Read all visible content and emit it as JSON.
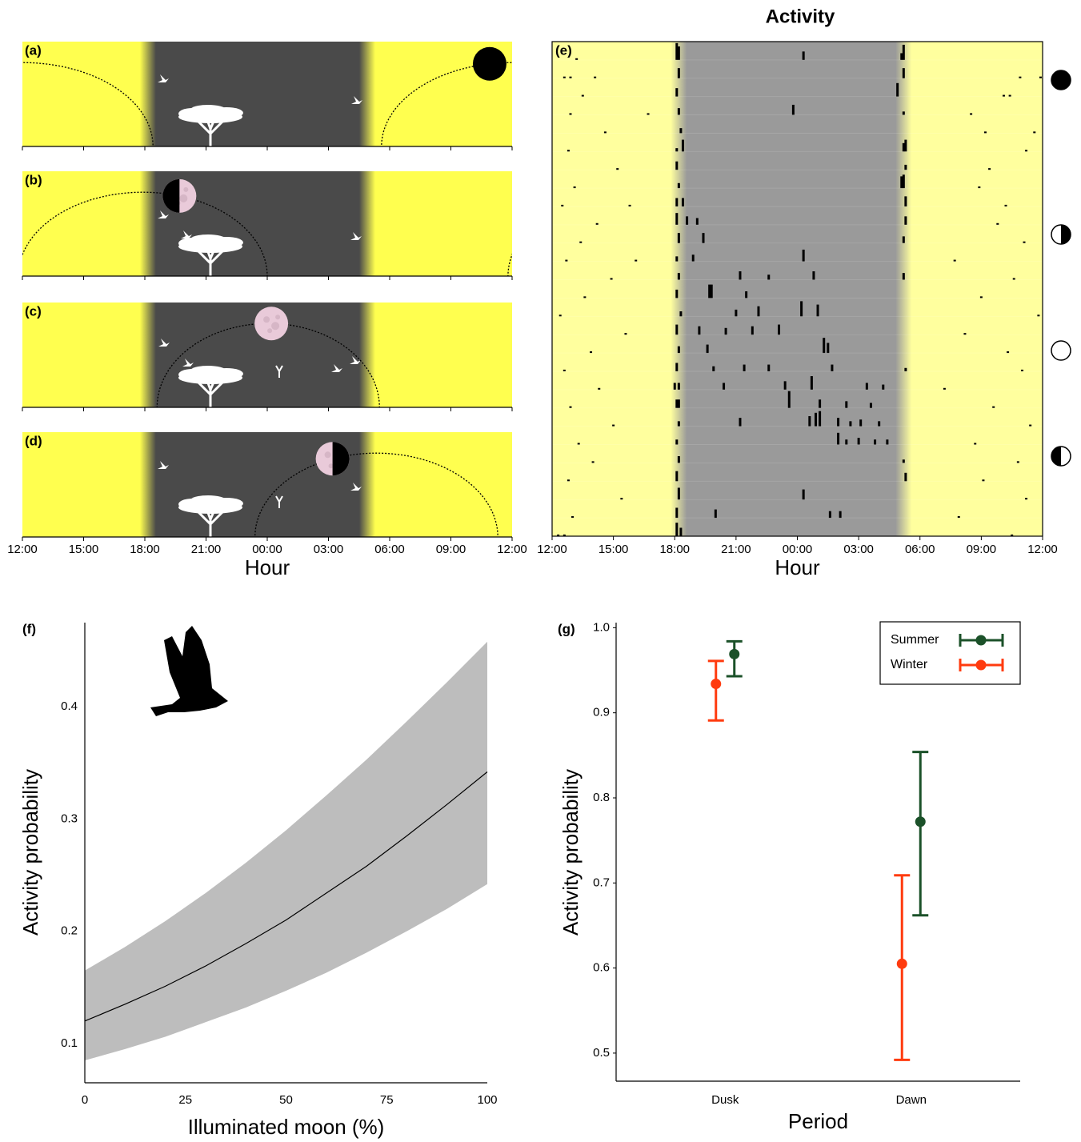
{
  "chart_data": [
    {
      "type": "moon-diagram",
      "panels": [
        {
          "label": "(a)",
          "moon_rise": 29.6,
          "moon_set": 18.4,
          "moon_at": 34.9
        },
        {
          "label": "(b)",
          "moon_rise": 35.8,
          "moon_set": 24.0,
          "moon_at": 19.7
        },
        {
          "label": "(c)",
          "moon_rise": 18.6,
          "moon_set": 29.5,
          "moon_at": 24.2
        },
        {
          "label": "(d)",
          "moon_rise": 23.4,
          "moon_set": 35.3,
          "moon_at": 27.2
        }
      ],
      "xlim": [
        12,
        36
      ],
      "xticks": [
        {
          "value": 12,
          "label": "12:00"
        },
        {
          "value": 15,
          "label": "15:00"
        },
        {
          "value": 18,
          "label": "18:00"
        },
        {
          "value": 21,
          "label": "21:00"
        },
        {
          "value": 24,
          "label": "00:00"
        },
        {
          "value": 27,
          "label": "03:00"
        },
        {
          "value": 30,
          "label": "06:00"
        },
        {
          "value": 33,
          "label": "09:00"
        },
        {
          "value": 36,
          "label": "12:00"
        }
      ],
      "xlabel": "Hour",
      "night": [
        18.15,
        28.9
      ],
      "day_color": "#ffff4f",
      "night_color": "#4a4a4a"
    },
    {
      "type": "actogram",
      "title": "Activity",
      "label": "(e)",
      "xlim": [
        12,
        36
      ],
      "xticks": [
        {
          "value": 12,
          "label": "12:00"
        },
        {
          "value": 15,
          "label": "15:00"
        },
        {
          "value": 18,
          "label": "18:00"
        },
        {
          "value": 21,
          "label": "21:00"
        },
        {
          "value": 24,
          "label": "00:00"
        },
        {
          "value": 27,
          "label": "03:00"
        },
        {
          "value": 30,
          "label": "06:00"
        },
        {
          "value": 33,
          "label": "09:00"
        },
        {
          "value": 36,
          "label": "12:00"
        }
      ],
      "xlabel": "Hour",
      "night": [
        18.2,
        29.2
      ],
      "day_color": "#ffff9e",
      "night_color": "#9a9a9a",
      "rows": [
        [
          [
            13.2,
            0.1
          ],
          [
            18.1,
            1
          ],
          [
            18.2,
            0.8
          ],
          [
            24.3,
            0.5
          ],
          [
            29.1,
            0.4
          ],
          [
            29.2,
            0.9
          ]
        ],
        [
          [
            12.6,
            0.1
          ],
          [
            12.9,
            0.1
          ],
          [
            14.1,
            0.1
          ],
          [
            18.2,
            0.6
          ],
          [
            29.2,
            0.6
          ],
          [
            34.9,
            0.1
          ],
          [
            35.9,
            0.1
          ]
        ],
        [
          [
            13.5,
            0.1
          ],
          [
            18.1,
            0.5
          ],
          [
            28.9,
            0.8
          ],
          [
            34.1,
            0.1
          ],
          [
            34.4,
            0.1
          ]
        ],
        [
          [
            12.9,
            0.1
          ],
          [
            16.7,
            0.1
          ],
          [
            18.2,
            0.4
          ],
          [
            23.8,
            0.6
          ],
          [
            29.2,
            0.2
          ],
          [
            32.5,
            0.1
          ]
        ],
        [
          [
            14.6,
            0.1
          ],
          [
            18.3,
            0.3
          ],
          [
            33.2,
            0.1
          ],
          [
            35.6,
            0.1
          ]
        ],
        [
          [
            12.8,
            0.1
          ],
          [
            18.1,
            0.2
          ],
          [
            18.4,
            0.7
          ],
          [
            29.2,
            0.5
          ],
          [
            29.3,
            0.7
          ],
          [
            35.2,
            0.1
          ]
        ],
        [
          [
            15.2,
            0.1
          ],
          [
            18.1,
            0.5
          ],
          [
            29.3,
            0.3
          ],
          [
            33.4,
            0.1
          ]
        ],
        [
          [
            13.1,
            0.1
          ],
          [
            18.2,
            0.3
          ],
          [
            29.1,
            0.7
          ],
          [
            29.2,
            0.8
          ],
          [
            32.9,
            0.1
          ]
        ],
        [
          [
            12.5,
            0.1
          ],
          [
            15.8,
            0.1
          ],
          [
            18.1,
            0.5
          ],
          [
            18.4,
            0.5
          ],
          [
            29.3,
            0.6
          ],
          [
            34.2,
            0.1
          ]
        ],
        [
          [
            14.2,
            0.1
          ],
          [
            18.1,
            0.7
          ],
          [
            18.6,
            0.5
          ],
          [
            19.1,
            0.4
          ],
          [
            29.3,
            0.5
          ],
          [
            33.8,
            0.1
          ]
        ],
        [
          [
            13.4,
            0.1
          ],
          [
            18.2,
            0.6
          ],
          [
            19.4,
            0.6
          ],
          [
            29.2,
            0.4
          ],
          [
            35.1,
            0.1
          ]
        ],
        [
          [
            12.7,
            0.1
          ],
          [
            16.1,
            0.1
          ],
          [
            18.1,
            0.3
          ],
          [
            18.9,
            0.4
          ],
          [
            24.3,
            0.7
          ],
          [
            31.7,
            0.1
          ]
        ],
        [
          [
            14.9,
            0.1
          ],
          [
            18.2,
            0.4
          ],
          [
            21.2,
            0.5
          ],
          [
            22.6,
            0.3
          ],
          [
            24.8,
            0.5
          ],
          [
            29.2,
            0.4
          ],
          [
            34.6,
            0.1
          ]
        ],
        [
          [
            13.6,
            0.1
          ],
          [
            18.1,
            0.5
          ],
          [
            19.7,
            0.8
          ],
          [
            19.8,
            0.8
          ],
          [
            21.5,
            0.4
          ],
          [
            33.0,
            0.1
          ]
        ],
        [
          [
            12.4,
            0.1
          ],
          [
            18.3,
            0.3
          ],
          [
            21.0,
            0.4
          ],
          [
            22.1,
            0.6
          ],
          [
            24.2,
            0.9
          ],
          [
            25.0,
            0.7
          ],
          [
            35.8,
            0.1
          ]
        ],
        [
          [
            15.6,
            0.1
          ],
          [
            18.1,
            0.6
          ],
          [
            19.2,
            0.5
          ],
          [
            20.5,
            0.4
          ],
          [
            21.8,
            0.5
          ],
          [
            23.1,
            0.6
          ],
          [
            32.2,
            0.1
          ]
        ],
        [
          [
            13.9,
            0.1
          ],
          [
            18.2,
            0.4
          ],
          [
            19.6,
            0.5
          ],
          [
            25.3,
            0.9
          ],
          [
            25.5,
            0.6
          ],
          [
            34.3,
            0.1
          ]
        ],
        [
          [
            12.6,
            0.1
          ],
          [
            18.1,
            0.5
          ],
          [
            19.9,
            0.3
          ],
          [
            21.4,
            0.4
          ],
          [
            22.6,
            0.4
          ],
          [
            25.7,
            0.4
          ],
          [
            29.3,
            0.2
          ],
          [
            35.0,
            0.1
          ]
        ],
        [
          [
            14.3,
            0.1
          ],
          [
            18.0,
            0.4
          ],
          [
            18.2,
            0.4
          ],
          [
            20.4,
            0.4
          ],
          [
            23.4,
            0.5
          ],
          [
            24.7,
            0.8
          ],
          [
            27.4,
            0.4
          ],
          [
            28.2,
            0.3
          ],
          [
            31.2,
            0.1
          ]
        ],
        [
          [
            12.9,
            0.1
          ],
          [
            18.1,
            0.5
          ],
          [
            18.2,
            0.5
          ],
          [
            23.6,
            1
          ],
          [
            25.1,
            0.5
          ],
          [
            26.4,
            0.4
          ],
          [
            27.6,
            0.3
          ],
          [
            33.6,
            0.1
          ]
        ],
        [
          [
            15.0,
            0.1
          ],
          [
            18.2,
            0.3
          ],
          [
            21.2,
            0.5
          ],
          [
            24.6,
            0.6
          ],
          [
            24.9,
            0.8
          ],
          [
            25.1,
            0.9
          ],
          [
            26.0,
            0.5
          ],
          [
            26.6,
            0.3
          ],
          [
            27.1,
            0.4
          ],
          [
            28.0,
            0.3
          ],
          [
            35.4,
            0.1
          ]
        ],
        [
          [
            13.3,
            0.1
          ],
          [
            18.1,
            0.3
          ],
          [
            26.0,
            0.7
          ],
          [
            26.4,
            0.3
          ],
          [
            27.0,
            0.4
          ],
          [
            27.8,
            0.3
          ],
          [
            28.4,
            0.3
          ],
          [
            32.7,
            0.1
          ]
        ],
        [
          [
            14.0,
            0.1
          ],
          [
            18.2,
            0.4
          ],
          [
            29.2,
            0.2
          ],
          [
            34.8,
            0.1
          ]
        ],
        [
          [
            12.8,
            0.1
          ],
          [
            18.1,
            0.6
          ],
          [
            29.3,
            0.5
          ],
          [
            33.1,
            0.1
          ]
        ],
        [
          [
            15.4,
            0.1
          ],
          [
            18.2,
            0.7
          ],
          [
            24.3,
            0.6
          ],
          [
            35.2,
            0.1
          ]
        ],
        [
          [
            13.0,
            0.1
          ],
          [
            18.1,
            0.6
          ],
          [
            20.0,
            0.5
          ],
          [
            25.6,
            0.4
          ],
          [
            26.1,
            0.4
          ],
          [
            31.9,
            0.1
          ]
        ],
        [
          [
            12.3,
            0.1
          ],
          [
            12.6,
            0.1
          ],
          [
            18.1,
            0.8
          ],
          [
            18.3,
            0.5
          ],
          [
            34.5,
            0.1
          ]
        ]
      ]
    },
    {
      "type": "line",
      "label": "(f)",
      "x": [
        0,
        10,
        20,
        30,
        40,
        50,
        60,
        70,
        80,
        90,
        100
      ],
      "values": [
        0.12,
        0.135,
        0.151,
        0.169,
        0.189,
        0.21,
        0.234,
        0.258,
        0.285,
        0.313,
        0.342
      ],
      "lower": [
        0.085,
        0.095,
        0.106,
        0.119,
        0.132,
        0.147,
        0.163,
        0.181,
        0.2,
        0.22,
        0.242
      ],
      "upper": [
        0.165,
        0.186,
        0.209,
        0.234,
        0.261,
        0.29,
        0.321,
        0.353,
        0.387,
        0.422,
        0.458
      ],
      "xlim": [
        0,
        100
      ],
      "xticks": [
        0,
        25,
        50,
        75,
        100
      ],
      "ylim": [
        0.065,
        0.475
      ],
      "yticks": [
        0.1,
        0.2,
        0.3,
        0.4
      ],
      "xlabel": "Illuminated moon (%)",
      "ylabel": "Activity probability",
      "color": "#000000",
      "band_color": "#bdbdbd"
    },
    {
      "type": "errorbar",
      "label": "(g)",
      "categories": [
        "Dusk",
        "Dawn"
      ],
      "series": [
        {
          "name": "Summer",
          "color": "#1b5129",
          "values": [
            0.969,
            0.772
          ],
          "lower": [
            0.943,
            0.662
          ],
          "upper": [
            0.984,
            0.854
          ]
        },
        {
          "name": "Winter",
          "color": "#ff3b0f",
          "values": [
            0.934,
            0.605
          ],
          "lower": [
            0.891,
            0.492
          ],
          "upper": [
            0.961,
            0.709
          ]
        }
      ],
      "ylim": [
        0.467,
        1.006
      ],
      "yticks": [
        0.5,
        0.6,
        0.7,
        0.8,
        0.9,
        {
          "value": 1,
          "label": "1.0"
        }
      ],
      "xlabel": "Period",
      "ylabel": "Activity probability",
      "legend": "top-right"
    }
  ]
}
